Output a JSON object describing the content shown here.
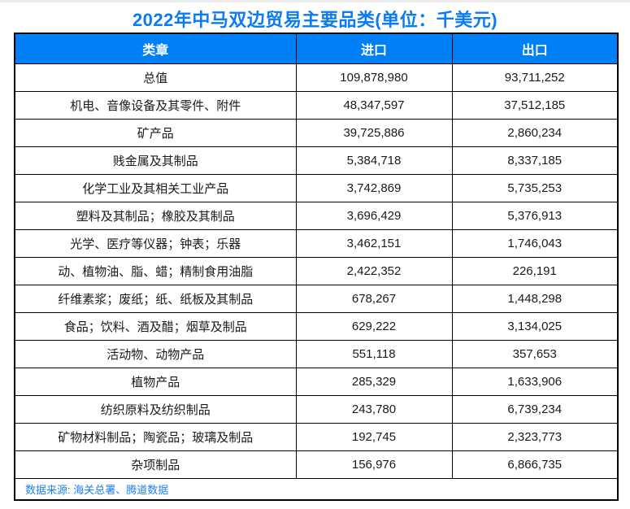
{
  "title": "2022年中马双边贸易主要品类(单位：千美元)",
  "table": {
    "columns": [
      "类章",
      "进口",
      "出口"
    ],
    "rows": [
      [
        "总值",
        "109,878,980",
        "93,711,252"
      ],
      [
        "机电、音像设备及其零件、附件",
        "48,347,597",
        "37,512,185"
      ],
      [
        "矿产品",
        "39,725,886",
        "2,860,234"
      ],
      [
        "贱金属及其制品",
        "5,384,718",
        "8,337,185"
      ],
      [
        "化学工业及其相关工业产品",
        "3,742,869",
        "5,735,253"
      ],
      [
        "塑料及其制品；橡胶及其制品",
        "3,696,429",
        "5,376,913"
      ],
      [
        "光学、医疗等仪器；钟表；乐器",
        "3,462,151",
        "1,746,043"
      ],
      [
        "动、植物油、脂、蜡；精制食用油脂",
        "2,422,352",
        "226,191"
      ],
      [
        "纤维素浆；废纸；纸、纸板及其制品",
        "678,267",
        "1,448,298"
      ],
      [
        "食品；饮料、酒及醋；烟草及制品",
        "629,222",
        "3,134,025"
      ],
      [
        "活动物、动物产品",
        "551,118",
        "357,653"
      ],
      [
        "植物产品",
        "285,329",
        "1,633,906"
      ],
      [
        "纺织原料及纺织制品",
        "243,780",
        "6,739,234"
      ],
      [
        "矿物材料制品；陶瓷品；玻璃及制品",
        "192,745",
        "2,323,773"
      ],
      [
        "杂项制品",
        "156,976",
        "6,866,735"
      ]
    ]
  },
  "footer": {
    "source_label": "数据来源: 海关总署、腾道数据"
  },
  "colors": {
    "title": "#0a7bf0",
    "header_bg": "#0080f6",
    "header_text": "#ffffff",
    "source_text": "#1e82e8",
    "border": "#000000"
  },
  "chart_data": {
    "type": "table",
    "title": "2022年中马双边贸易主要品类(单位：千美元)",
    "unit": "千美元",
    "columns": [
      "类章",
      "进口",
      "出口"
    ],
    "categories": [
      "总值",
      "机电、音像设备及其零件、附件",
      "矿产品",
      "贱金属及其制品",
      "化学工业及其相关工业产品",
      "塑料及其制品；橡胶及其制品",
      "光学、医疗等仪器；钟表；乐器",
      "动、植物油、脂、蜡；精制食用油脂",
      "纤维素浆；废纸；纸、纸板及其制品",
      "食品；饮料、酒及醋；烟草及制品",
      "活动物、动物产品",
      "植物产品",
      "纺织原料及纺织制品",
      "矿物材料制品；陶瓷品；玻璃及制品",
      "杂项制品"
    ],
    "series": [
      {
        "name": "进口",
        "values": [
          109878980,
          48347597,
          39725886,
          5384718,
          3742869,
          3696429,
          3462151,
          2422352,
          678267,
          629222,
          551118,
          285329,
          243780,
          192745,
          156976
        ]
      },
      {
        "name": "出口",
        "values": [
          93711252,
          37512185,
          2860234,
          8337185,
          5735253,
          5376913,
          1746043,
          226191,
          1448298,
          3134025,
          357653,
          1633906,
          6739234,
          2323773,
          6866735
        ]
      }
    ],
    "source": "数据来源: 海关总署、腾道数据"
  }
}
